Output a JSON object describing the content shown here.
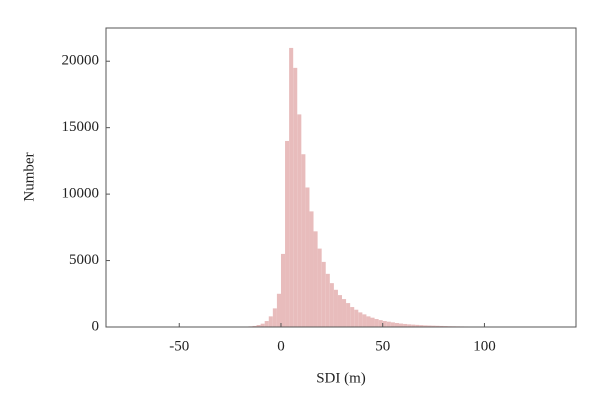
{
  "chart_data": {
    "type": "histogram",
    "xlabel": "SDI (m)",
    "ylabel": "Number",
    "color": "#e8bcbc",
    "bins": [
      -20,
      -18,
      -16,
      -14,
      -12,
      -10,
      -8,
      -6,
      -4,
      -2,
      0,
      2,
      4,
      6,
      8,
      10,
      12,
      14,
      16,
      18,
      20,
      22,
      24,
      26,
      28,
      30,
      32,
      34,
      36,
      38,
      40,
      42,
      44,
      46,
      48,
      50,
      52,
      54,
      56,
      58,
      60,
      62,
      64,
      66,
      68,
      70,
      72,
      74,
      76,
      78,
      80,
      82,
      84,
      86,
      88,
      90,
      92,
      94,
      96,
      98,
      100,
      102,
      104,
      106,
      108,
      110,
      112,
      114,
      116,
      118,
      120
    ],
    "counts": [
      20,
      30,
      50,
      80,
      150,
      250,
      450,
      800,
      1400,
      2500,
      5500,
      14000,
      21000,
      19500,
      16000,
      13000,
      10500,
      8700,
      7200,
      5900,
      4900,
      4000,
      3300,
      2800,
      2400,
      2100,
      1800,
      1500,
      1300,
      1100,
      950,
      800,
      700,
      600,
      520,
      450,
      400,
      350,
      300,
      260,
      230,
      200,
      180,
      160,
      140,
      120,
      110,
      100,
      90,
      80,
      70,
      60,
      55,
      50,
      45,
      40,
      35,
      30,
      28,
      25,
      22,
      20,
      18,
      16,
      14,
      12,
      10,
      8,
      6,
      5
    ],
    "xlim": [
      -86,
      145
    ],
    "ylim": [
      0,
      22500
    ],
    "xticks": [
      -50,
      0,
      50,
      100
    ],
    "yticks": [
      0,
      5000,
      10000,
      15000,
      20000
    ]
  }
}
